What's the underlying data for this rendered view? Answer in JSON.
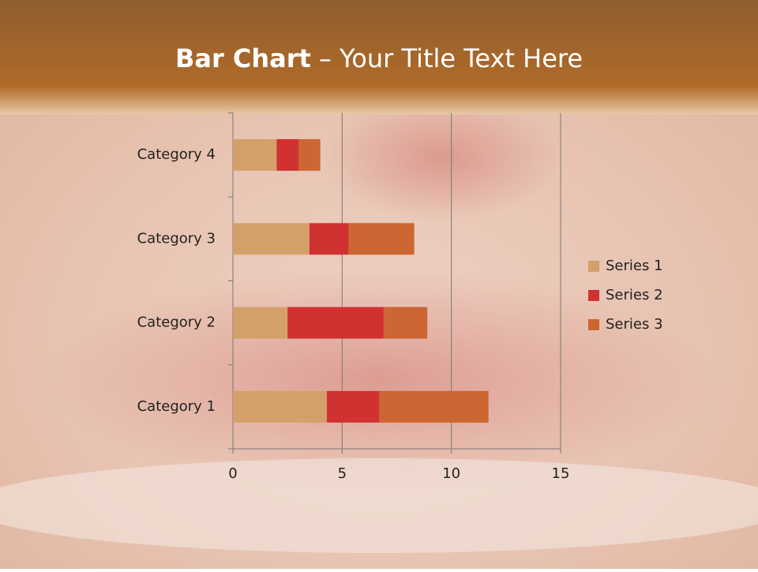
{
  "chart_data": {
    "type": "stacked_barh",
    "title": {
      "bold": "Bar Chart",
      "rest": "– Your Title Text Here"
    },
    "categories": [
      "Category 1",
      "Category 2",
      "Category 3",
      "Category 4"
    ],
    "series": [
      {
        "name": "Series 1",
        "color": "#d4a06a",
        "values": [
          4.3,
          2.5,
          3.5,
          2
        ]
      },
      {
        "name": "Series 2",
        "color": "#d03232",
        "values": [
          2.4,
          4.4,
          1.8,
          1
        ]
      },
      {
        "name": "Series 3",
        "color": "#cc6633",
        "values": [
          5,
          2,
          3,
          1
        ]
      }
    ],
    "xlim": [
      0,
      15
    ],
    "xticks": [
      0,
      5,
      10,
      15
    ],
    "grid": true,
    "legend": "right"
  }
}
